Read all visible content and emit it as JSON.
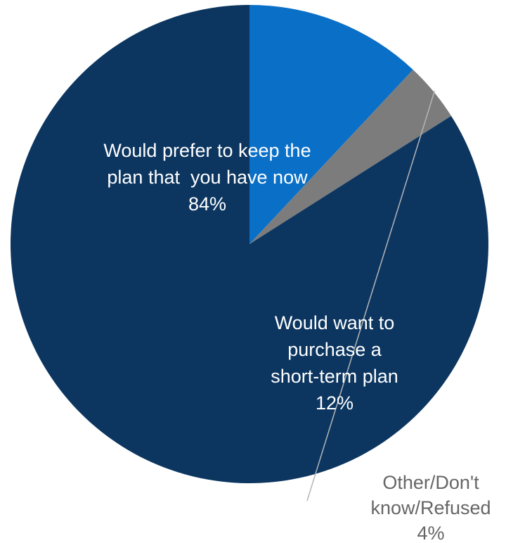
{
  "chart_data": {
    "type": "pie",
    "start_angle_deg": 90,
    "direction": "clockwise",
    "slices": [
      {
        "label_lines": [
          "Would want to",
          "purchase a",
          "short-term plan"
        ],
        "value_label": "12%",
        "value": 12,
        "color": "#0a6fc7",
        "label_color": "#ffffff"
      },
      {
        "label_lines": [
          "Other/Don't",
          "know/Refused"
        ],
        "value_label": "4%",
        "value": 4,
        "color": "#7c7c7c",
        "label_color": "#666666"
      },
      {
        "label_lines": [
          "Would prefer to keep the",
          "plan that  you have now"
        ],
        "value_label": "84%",
        "value": 84,
        "color": "#0c3660",
        "label_color": "#ffffff"
      }
    ]
  }
}
